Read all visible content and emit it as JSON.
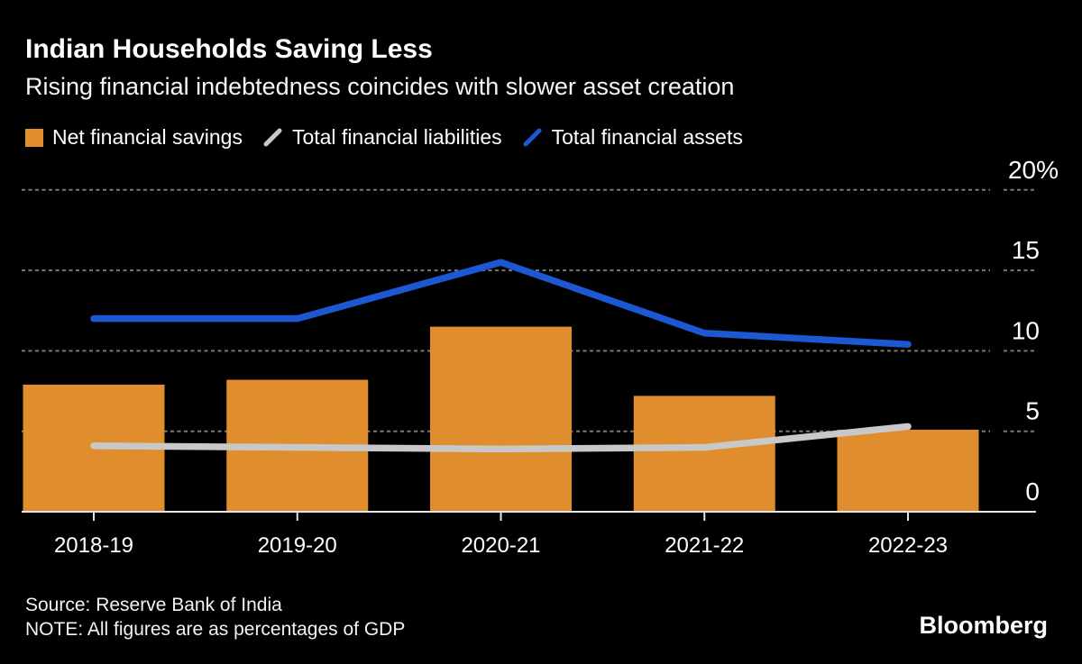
{
  "header": {
    "title": "Indian Households Saving Less",
    "subtitle": "Rising financial indebtedness coincides with slower asset creation"
  },
  "chart_data": {
    "type": "combo-bar-line",
    "title": "Indian Households Saving Less",
    "subtitle": "Rising financial indebtedness coincides with slower asset creation",
    "categories": [
      "2018-19",
      "2019-20",
      "2020-21",
      "2021-22",
      "2022-23"
    ],
    "series": [
      {
        "name": "Net financial savings",
        "type": "bar",
        "color": "#DF8D2D",
        "values": [
          7.9,
          8.2,
          11.5,
          7.2,
          5.1
        ]
      },
      {
        "name": "Total financial liabilities",
        "type": "line",
        "color": "#C8C8C8",
        "values": [
          4.1,
          4.0,
          3.9,
          4.0,
          5.3
        ]
      },
      {
        "name": "Total financial assets",
        "type": "line",
        "color": "#1B58D2",
        "values": [
          12.0,
          12.0,
          15.5,
          11.1,
          10.4
        ]
      }
    ],
    "xlabel": "",
    "ylabel": "",
    "ylim": [
      0,
      20
    ],
    "yticks": [
      0,
      5,
      10,
      15,
      20
    ],
    "ytick_labels": [
      "0",
      "5",
      "10",
      "15",
      "20%"
    ],
    "grid": "horizontal-dashed",
    "legend_position": "top-left"
  },
  "footer": {
    "source": "Source: Reserve Bank of India",
    "note": "NOTE: All figures are as percentages of GDP",
    "brand": "Bloomberg"
  },
  "colors": {
    "background": "#000000",
    "text": "#FFFFFF",
    "grid": "#787878",
    "axis": "#E6E6E6",
    "bar": "#DF8D2D",
    "liabilities_line": "#C8C8C8",
    "assets_line": "#1B58D2"
  }
}
